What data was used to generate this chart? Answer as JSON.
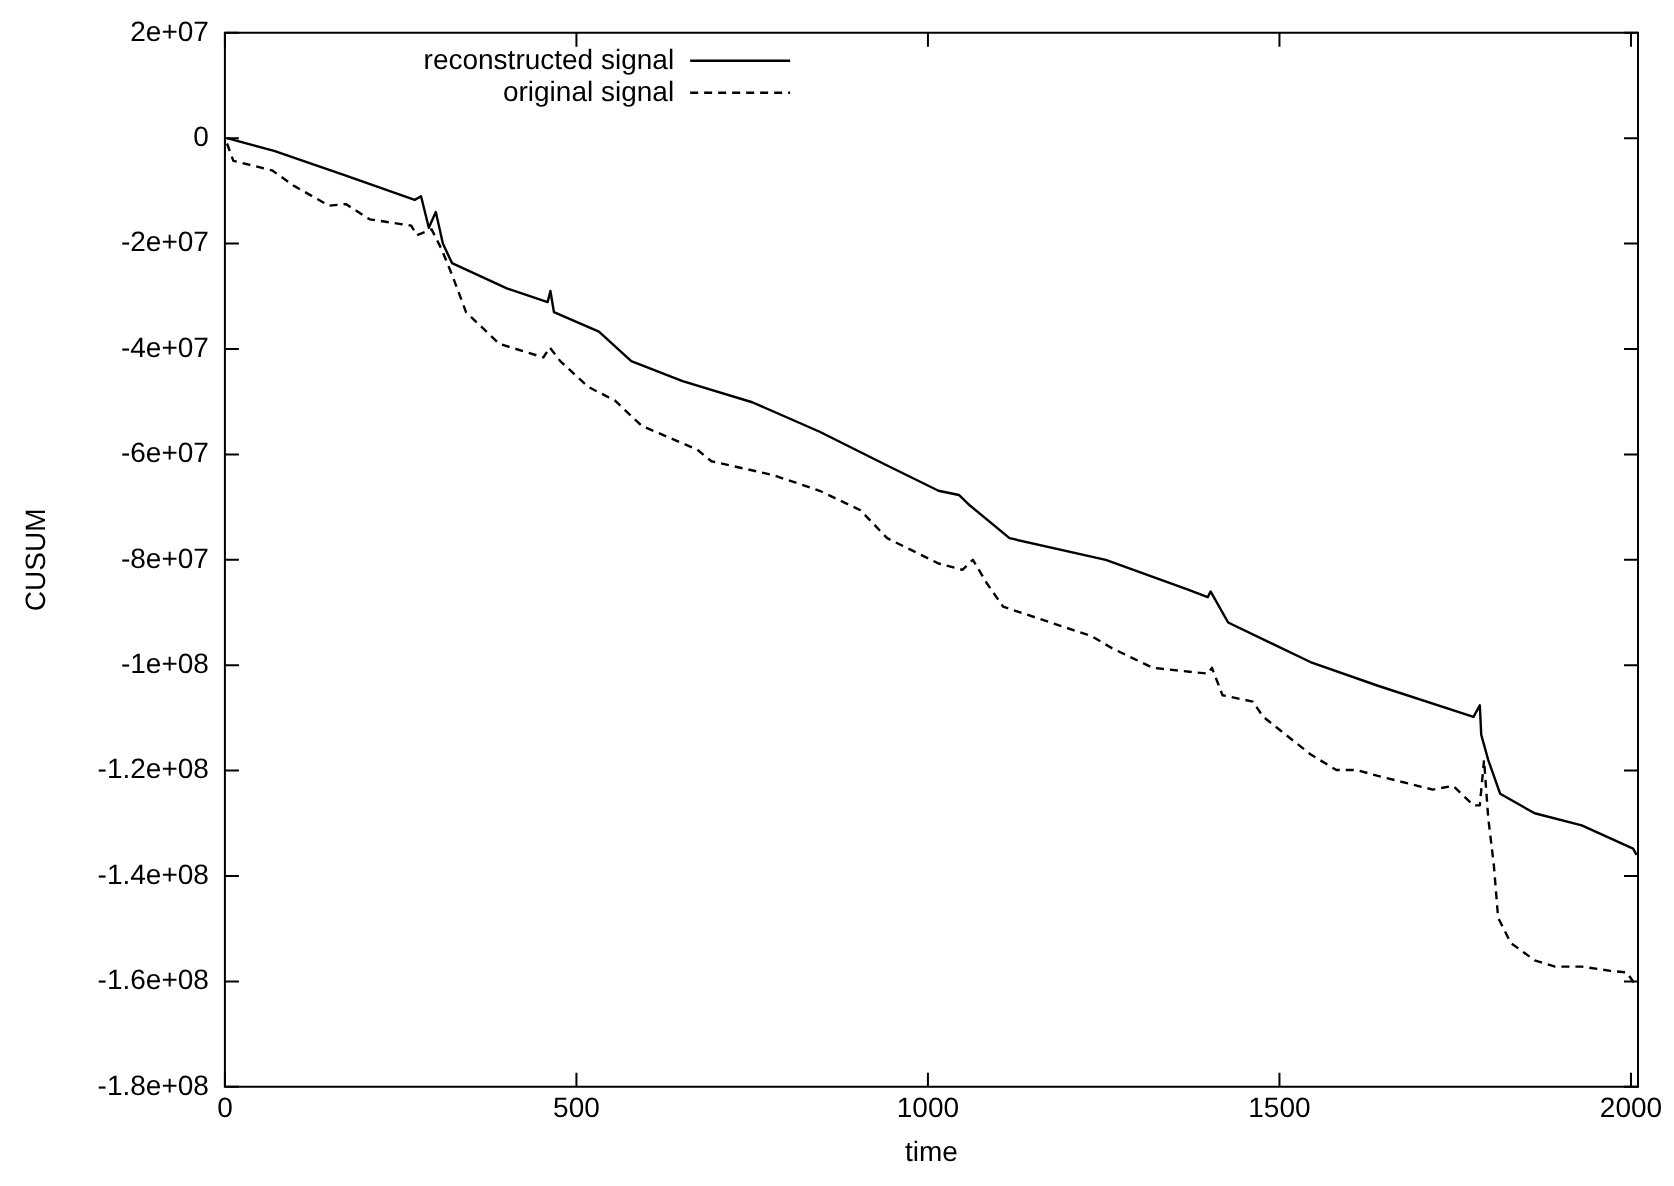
{
  "chart_data": {
    "type": "line",
    "xlabel": "time",
    "ylabel": "CUSUM",
    "legend": "top left",
    "grid": false,
    "marker": "none",
    "xlim": [
      0,
      2010
    ],
    "xticks": [
      0,
      500,
      1000,
      1500,
      2000
    ],
    "ylim": [
      -180000000,
      20000000
    ],
    "yticks": [
      {
        "value": 20000000,
        "label": "2e+07"
      },
      {
        "value": 0,
        "label": "0"
      },
      {
        "value": -20000000,
        "label": "-2e+07"
      },
      {
        "value": -40000000,
        "label": "-4e+07"
      },
      {
        "value": -60000000,
        "label": "-6e+07"
      },
      {
        "value": -80000000,
        "label": "-8e+07"
      },
      {
        "value": -100000000,
        "label": "-1e+08"
      },
      {
        "value": -120000000,
        "label": "-1.2e+08"
      },
      {
        "value": -140000000,
        "label": "-1.4e+08"
      },
      {
        "value": -160000000,
        "label": "-1.6e+08"
      },
      {
        "value": -180000000,
        "label": "-1.8e+08"
      }
    ],
    "series": [
      {
        "name": "reconstructed signal",
        "color": "#000000",
        "line_style": "solid",
        "x": [
          3,
          70,
          168,
          270,
          279,
          290,
          300,
          310,
          323,
          401,
          459,
          463,
          468,
          532,
          578,
          651,
          750,
          846,
          942,
          1015,
          1044,
          1058,
          1116,
          1253,
          1369,
          1398,
          1402,
          1427,
          1544,
          1640,
          1776,
          1785,
          1787,
          1797,
          1814,
          1863,
          1930,
          2003,
          2008
        ],
        "values": [
          0,
          -2400000,
          -6900000,
          -11700000,
          -11000000,
          -17000000,
          -14000000,
          -20000000,
          -23700000,
          -28500000,
          -31100000,
          -29000000,
          -33000000,
          -36700000,
          -42300000,
          -46100000,
          -50100000,
          -55700000,
          -62100000,
          -66900000,
          -67700000,
          -69500000,
          -75900000,
          -80000000,
          -85600000,
          -87100000,
          -86000000,
          -91900000,
          -99400000,
          -103900000,
          -109800000,
          -107600000,
          -113200000,
          -118000000,
          -124400000,
          -128100000,
          -130400000,
          -134800000,
          -136000000
        ]
      },
      {
        "name": "original signal",
        "color": "#000000",
        "line_style": "dashed",
        "x": [
          3,
          12,
          67,
          99,
          148,
          172,
          206,
          265,
          273,
          294,
          308,
          323,
          343,
          390,
          453,
          462,
          477,
          517,
          555,
          593,
          672,
          692,
          779,
          846,
          904,
          942,
          1015,
          1049,
          1064,
          1084,
          1107,
          1233,
          1262,
          1320,
          1398,
          1404,
          1419,
          1462,
          1477,
          1544,
          1581,
          1610,
          1640,
          1718,
          1747,
          1776,
          1785,
          1791,
          1797,
          1805,
          1811,
          1829,
          1863,
          1892,
          1930,
          1971,
          1994,
          2003,
          2008
        ],
        "values": [
          -1000000,
          -4300000,
          -6100000,
          -9100000,
          -12800000,
          -12500000,
          -15400000,
          -16600000,
          -18400000,
          -17300000,
          -21000000,
          -25900000,
          -33000000,
          -39000000,
          -41600000,
          -39700000,
          -42300000,
          -47200000,
          -49800000,
          -54600000,
          -59100000,
          -61300000,
          -63900000,
          -66900000,
          -70600000,
          -75900000,
          -80700000,
          -81900000,
          -80000000,
          -84500000,
          -88900000,
          -94500000,
          -96800000,
          -100500000,
          -101600000,
          -100500000,
          -105700000,
          -106900000,
          -109800000,
          -116900000,
          -119900000,
          -119900000,
          -121000000,
          -123600000,
          -122900000,
          -126600000,
          -126600000,
          -118000000,
          -129000000,
          -138000000,
          -147900000,
          -152700000,
          -156000000,
          -157200000,
          -157200000,
          -158000000,
          -158300000,
          -160000000,
          -161000000
        ]
      }
    ]
  }
}
